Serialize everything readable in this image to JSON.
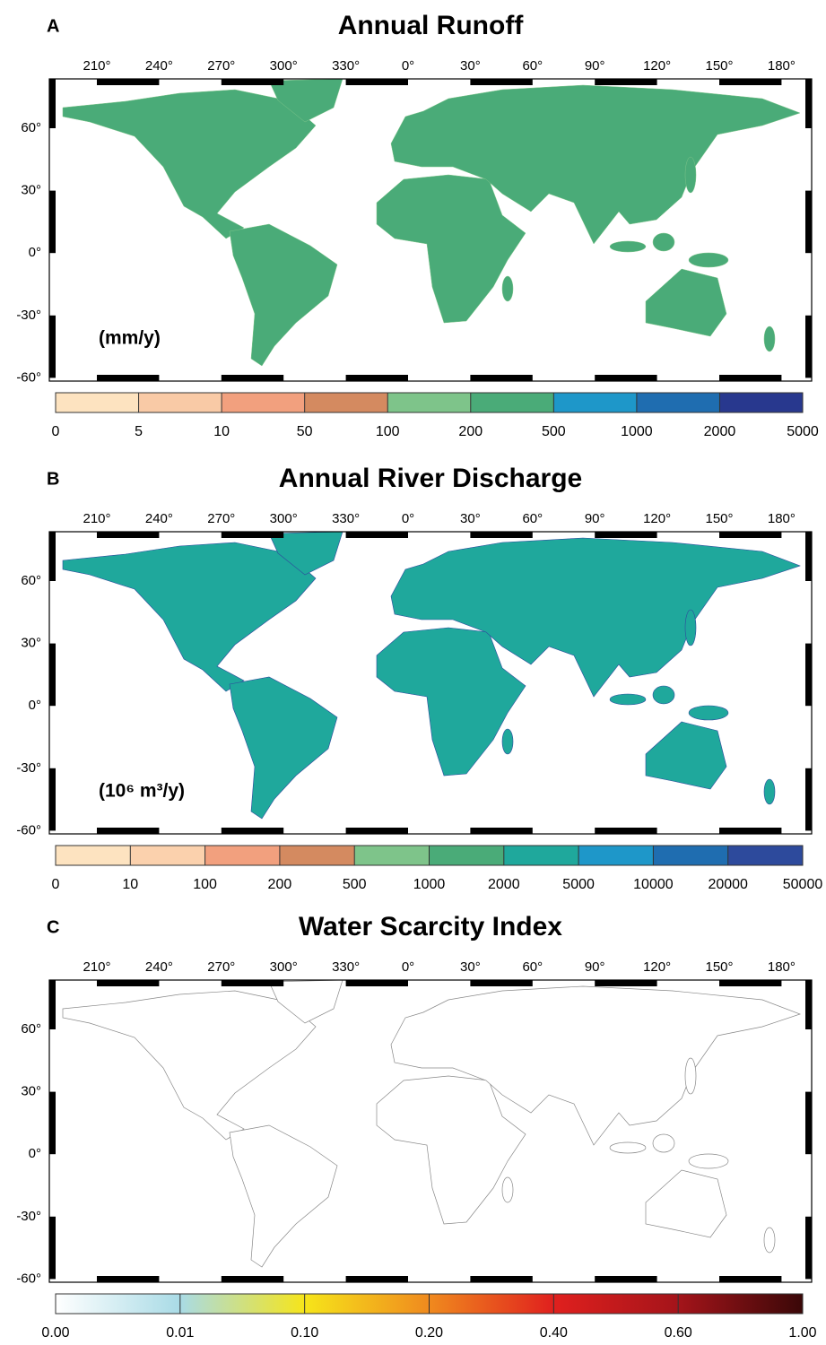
{
  "lon_ticks": [
    "210°",
    "240°",
    "270°",
    "300°",
    "330°",
    "0°",
    "30°",
    "60°",
    "90°",
    "120°",
    "150°",
    "180°"
  ],
  "lat_ticks": [
    "60°",
    "30°",
    "0°",
    "-30°",
    "-60°"
  ],
  "panels": [
    {
      "letter": "A",
      "title": "Annual Runoff",
      "unit": "(mm/y)",
      "colorbar": {
        "ticks": [
          0,
          5,
          10,
          50,
          100,
          200,
          500,
          1000,
          2000,
          5000
        ],
        "colors": [
          "#fde3c0",
          "#f9caa6",
          "#f2a07e",
          "#d48a60",
          "#7ec48a",
          "#4aab78",
          "#1e97c9",
          "#1f6db0",
          "#28388e"
        ]
      }
    },
    {
      "letter": "B",
      "title": "Annual River Discharge",
      "unit": "(10⁶ m³/y)",
      "colorbar": {
        "ticks": [
          0,
          10,
          100,
          200,
          500,
          1000,
          2000,
          5000,
          10000,
          20000,
          50000
        ],
        "colors": [
          "#fde3c0",
          "#fbd1ad",
          "#f2a07e",
          "#d48a60",
          "#7ec48a",
          "#4aab78",
          "#1fa89c",
          "#1e97c9",
          "#1f6db0",
          "#2d4a9c"
        ]
      }
    },
    {
      "letter": "C",
      "title": "Water Scarcity Index",
      "colorbar": {
        "ticks": [
          {
            "value": 0,
            "label": "0.00"
          },
          {
            "value": 0.01,
            "label": "0.01"
          },
          {
            "value": 0.1,
            "label": "0.10"
          },
          {
            "value": 0.2,
            "label": "0.20"
          },
          {
            "value": 0.4,
            "label": "0.40"
          },
          {
            "value": 0.6,
            "label": "0.60"
          },
          {
            "value": 1,
            "label": "1.00"
          }
        ],
        "colors": [
          [
            "#ffffff",
            "#a9dbe6"
          ],
          [
            "#a9dbe6",
            "#f6e51a"
          ],
          [
            "#f6e51a",
            "#f08a1e"
          ],
          [
            "#f08a1e",
            "#e0201e"
          ],
          [
            "#e0201e",
            "#a4141a"
          ],
          [
            "#a4141a",
            "#3a0808"
          ]
        ]
      }
    }
  ]
}
